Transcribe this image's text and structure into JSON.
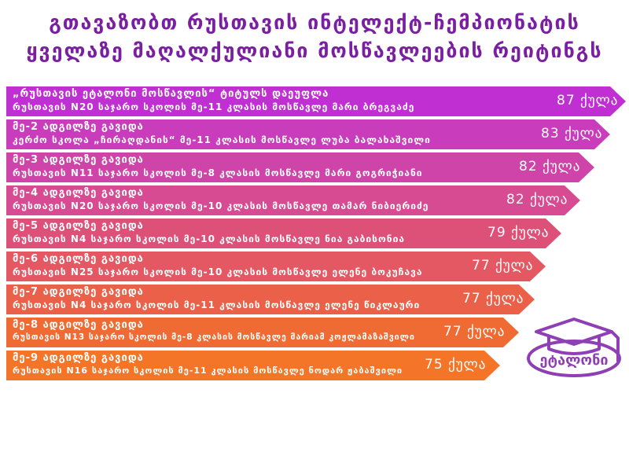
{
  "header": {
    "title_line1": "გთავაზობთ რუსთავის ინტელექტ-ჩემპიონატის",
    "title_line2": "ყველაზე მაღალქულიანი მოსწავლეების რეიტინგს"
  },
  "rows": [
    {
      "line1": "„რუსთავის ეტალონი მოსწავლის“ ტიტულს დაეუფლა",
      "line2": "რუსთავის N20 საჯარო სკოლის მე-11 კლასის მოსწავლე მარი ბრეგვაძე",
      "score": "87 ქულა",
      "color": "#c02fd1"
    },
    {
      "line1": "მე-2 ადგილზე გავიდა",
      "line2": "კერძო სკოლა „ჩირაღდანის“ მე-11 კლასის მოსწავლე ლუბა ბალახაშვილი",
      "score": "83 ქულა",
      "color": "#c93cbb"
    },
    {
      "line1": "მე-3 ადგილზე გავიდა",
      "line2": "რუსთავის N11 საჯარო სკოლის მე-8 კლასის მოსწავლე მარი გოგრიჭიანი",
      "score": "82 ქულა",
      "color": "#cf44a8"
    },
    {
      "line1": "მე-4 ადგილზე გავიდა",
      "line2": "რუსთავის N20 საჯარო სკოლის მე-10 კლასის მოსწავლე თამარ ნიბიერიძე",
      "score": "82 ქულა",
      "color": "#d64b92"
    },
    {
      "line1": "მე-5 ადგილზე გავიდა",
      "line2": "რუსთავის N4 საჯარო სკოლის მე-10 კლასის მოსწავლე ნია გაბისონია",
      "score": "79 ქულა",
      "color": "#dd5179"
    },
    {
      "line1": "მე-6 ადგილზე გავიდა",
      "line2": "რუსთავის N25 საჯარო სკოლის მე-10 კლასის მოსწავლე ელენე ბოკუჩავა",
      "score": "77 ქულა",
      "color": "#e45863"
    },
    {
      "line1": "მე-7 ადგილზე გავიდა",
      "line2": "რუსთავის N4 საჯარო სკოლის მე-11 კლასის მოსწავლე ელენე წიკლაური",
      "score": "77 ქულა",
      "color": "#eb6049"
    },
    {
      "line1": "მე-8 ადგილზე გავიდა",
      "line2": "რუსთავის N13 საჯარო სკოლის მე-8 კლასის მოსწავლე მარიამ კოჟლამაზაშვილი",
      "score": "77 ქულა",
      "color": "#f06a33"
    },
    {
      "line1": "მე-9 ადგილზე გავიდა",
      "line2": "რუსთავის N16 საჯარო სკოლის მე-11 კლასის მოსწავლე ნოდარ ჟაბაშვილი",
      "score": "75 ქულა",
      "color": "#f47528"
    }
  ],
  "logo": {
    "text": "ეტალონი",
    "color": "#8e3fb3"
  }
}
